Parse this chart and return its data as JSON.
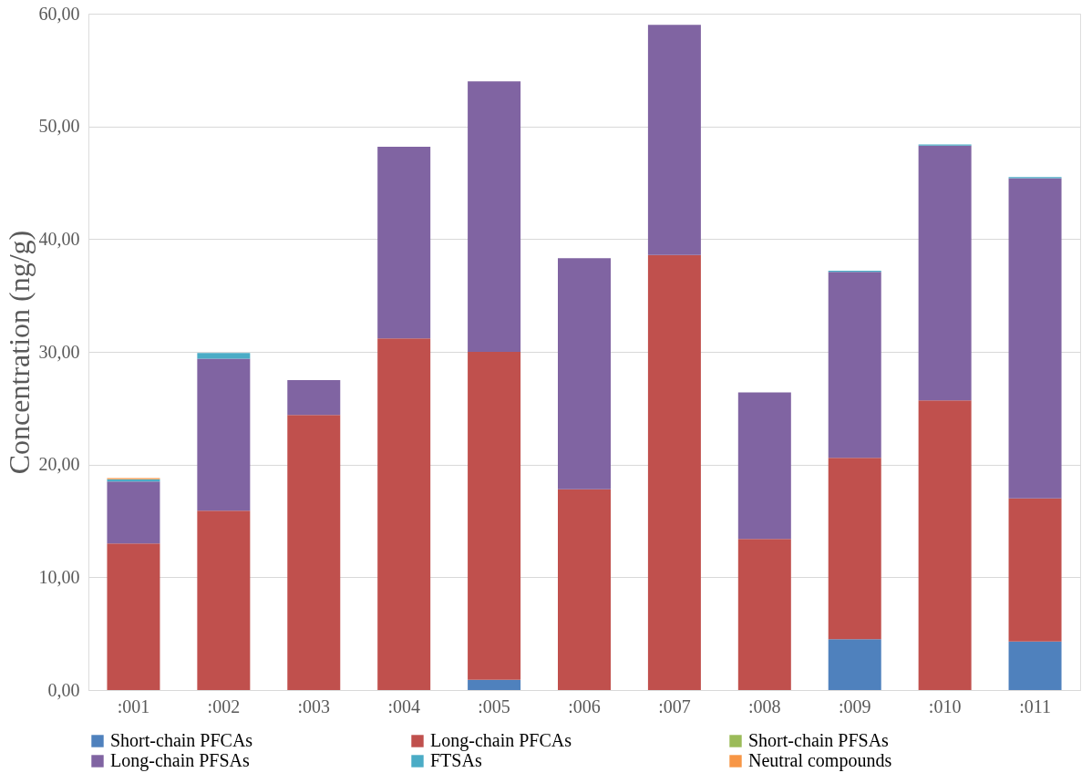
{
  "chart_data": {
    "type": "bar",
    "stacked": true,
    "ylabel": "Concentration (ng/g)",
    "categories": [
      ":001",
      ":002",
      ":003",
      ":004",
      ":005",
      ":006",
      ":007",
      ":008",
      ":009",
      ":010",
      ":011"
    ],
    "series": [
      {
        "name": "Short-chain PFCAs",
        "color": "#4f81bd",
        "values": [
          null,
          null,
          null,
          null,
          0.9,
          null,
          null,
          null,
          4.5,
          null,
          4.3
        ]
      },
      {
        "name": "Long-chain PFCAs",
        "color": "#c0504d",
        "values": [
          13.0,
          15.9,
          24.4,
          31.2,
          29.1,
          17.8,
          38.6,
          13.4,
          16.1,
          25.7,
          12.7
        ]
      },
      {
        "name": "Short-chain PFSAs",
        "color": "#9bbb59",
        "values": [
          null,
          null,
          null,
          null,
          null,
          null,
          null,
          null,
          null,
          null,
          null
        ]
      },
      {
        "name": "Long-chain PFSAs",
        "color": "#8064a2",
        "values": [
          5.5,
          13.5,
          3.1,
          17.0,
          24.0,
          20.5,
          20.4,
          13.0,
          16.5,
          22.6,
          28.4
        ]
      },
      {
        "name": "FTSAs",
        "color": "#4bacc6",
        "values": [
          0.2,
          0.5,
          null,
          null,
          null,
          null,
          null,
          null,
          0.1,
          0.1,
          0.1
        ]
      },
      {
        "name": "Neutral compounds",
        "color": "#f79646",
        "values": [
          0.1,
          null,
          null,
          null,
          null,
          null,
          null,
          null,
          null,
          null,
          null
        ]
      }
    ],
    "ylim": [
      0,
      60
    ],
    "yticks": [
      {
        "value": 0,
        "label": "0,00"
      },
      {
        "value": 10,
        "label": "10,00"
      },
      {
        "value": 20,
        "label": "20,00"
      },
      {
        "value": 30,
        "label": "30,00"
      },
      {
        "value": 40,
        "label": "40,00"
      },
      {
        "value": 50,
        "label": "50,00"
      },
      {
        "value": 60,
        "label": "60,00"
      }
    ],
    "grid": "y",
    "legend": "bottom"
  }
}
